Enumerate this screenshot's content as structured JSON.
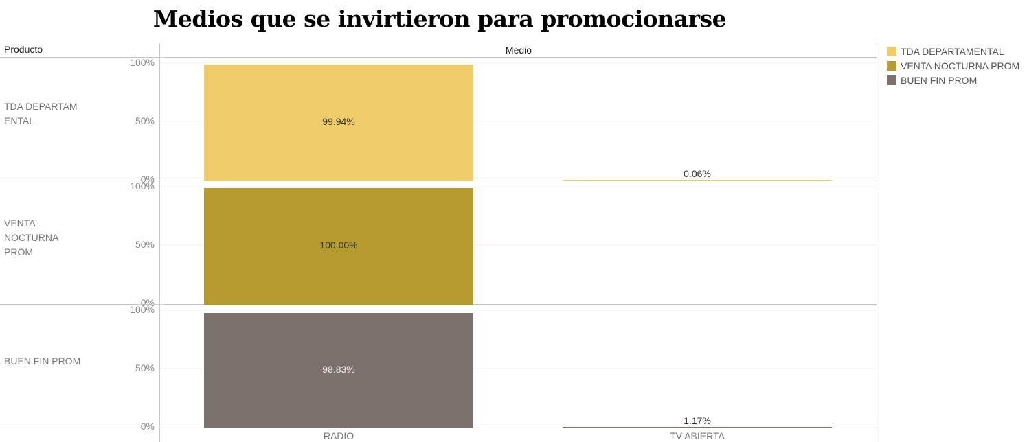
{
  "title": "Medios que se invirtieron para promocionarse",
  "header": {
    "row_dimension": "Producto",
    "column_dimension": "Medio"
  },
  "colors": {
    "TDA DEPARTAMENTAL": "#efcc69",
    "VENTA NOCTURNA PROM": "#b59a2e",
    "BUEN FIN PROM": "#7a706c"
  },
  "legend": [
    {
      "label": "TDA DEPARTAMENTAL",
      "color": "#efcc69"
    },
    {
      "label": "VENTA NOCTURNA PROM",
      "color": "#b59a2e"
    },
    {
      "label": "BUEN FIN PROM",
      "color": "#7a706c"
    }
  ],
  "chart_data": {
    "type": "bar",
    "categories": [
      "RADIO",
      "TV ABIERTA"
    ],
    "y_ticks": [
      "100%",
      "50%",
      "0%"
    ],
    "ylim": [
      0,
      100
    ],
    "rows": [
      {
        "label": "TDA DEPARTAM\nENTAL",
        "series": "TDA DEPARTAMENTAL",
        "values": [
          99.94,
          0.06
        ],
        "data_labels": [
          "99.94%",
          "0.06%"
        ]
      },
      {
        "label": "VENTA\nNOCTURNA\nPROM",
        "series": "VENTA NOCTURNA PROM",
        "values": [
          100.0,
          null
        ],
        "data_labels": [
          "100.00%",
          ""
        ]
      },
      {
        "label": "BUEN FIN PROM",
        "series": "BUEN FIN PROM",
        "values": [
          98.83,
          1.17
        ],
        "data_labels": [
          "98.83%",
          "1.17%"
        ]
      }
    ],
    "grid": true
  }
}
